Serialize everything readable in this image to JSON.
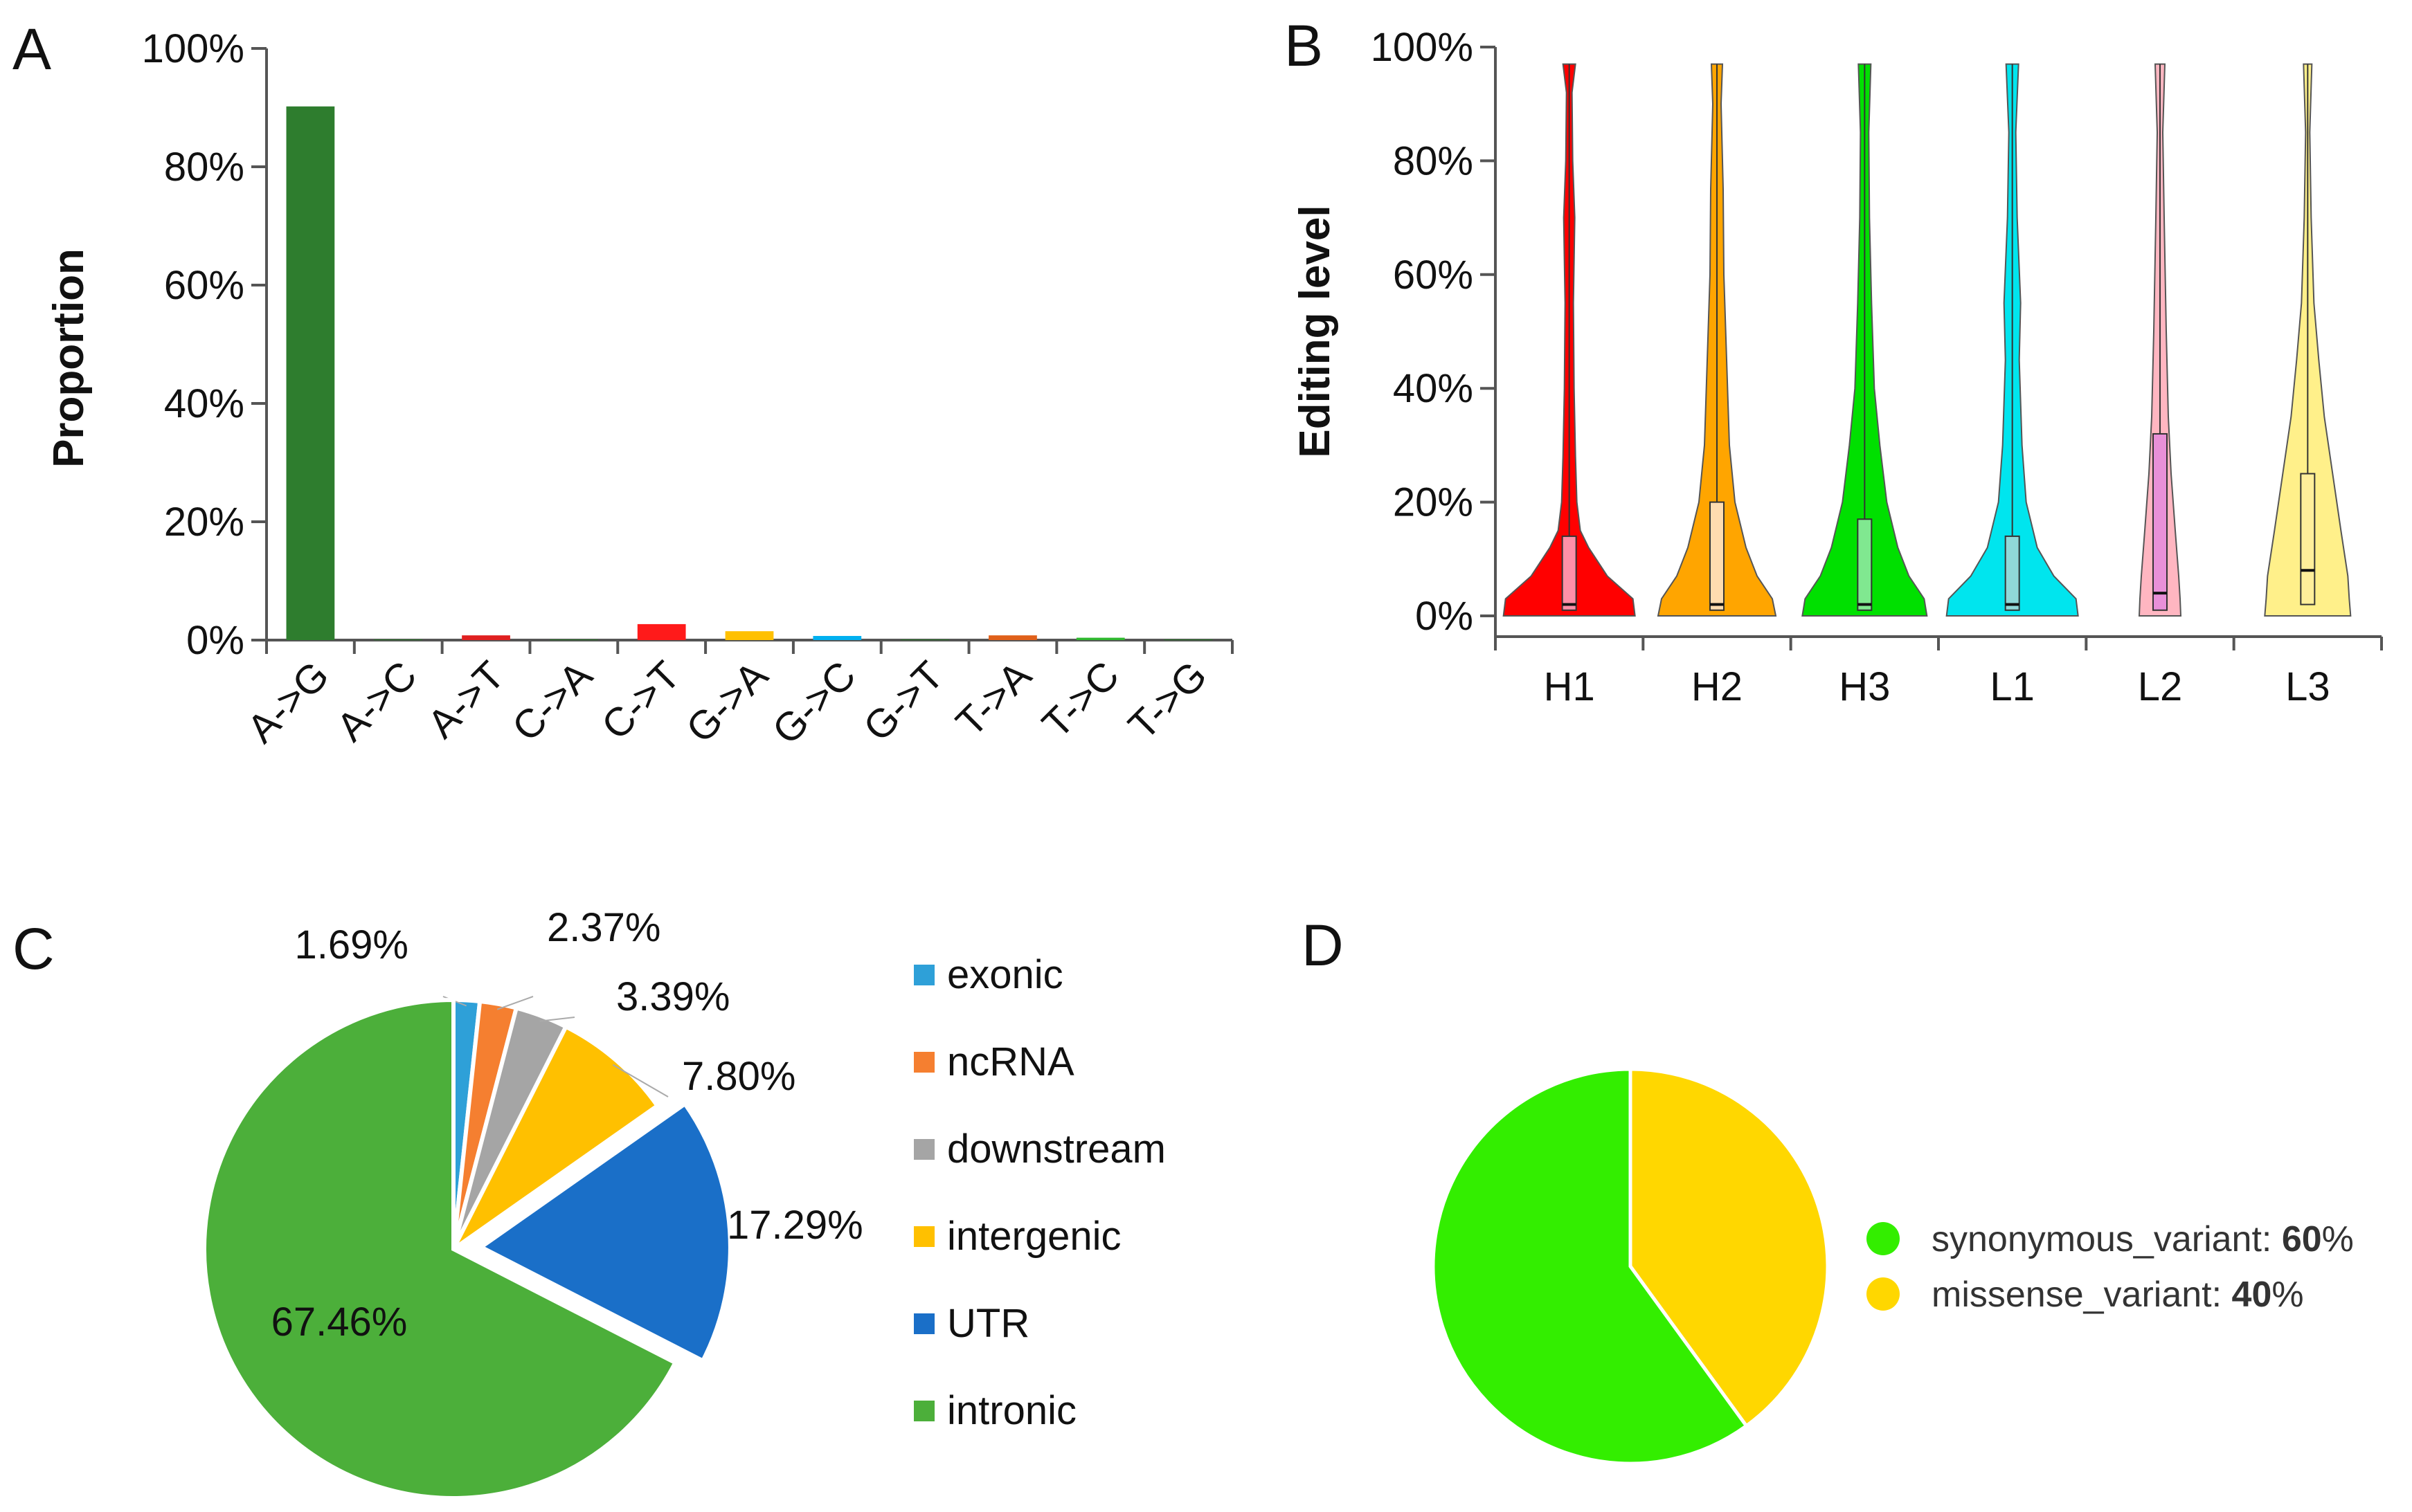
{
  "chart_data": [
    {
      "panel": "A",
      "type": "bar",
      "ylabel": "Proportion",
      "xlabel": "",
      "ylim": [
        0,
        100
      ],
      "y_ticks": [
        "0%",
        "20%",
        "40%",
        "60%",
        "80%",
        "100%"
      ],
      "categories": [
        "A->G",
        "A->C",
        "A->T",
        "C->A",
        "C->T",
        "G->A",
        "G->C",
        "G->T",
        "T->A",
        "T->C",
        "T->G"
      ],
      "values": [
        90.2,
        0.1,
        0.8,
        0.1,
        2.7,
        1.5,
        0.7,
        0.1,
        0.8,
        0.4,
        0.1
      ],
      "colors": [
        "#2e7d2e",
        "#2e7d2e",
        "#e02020",
        "#2e7d2e",
        "#ff1a1a",
        "#ffc000",
        "#00b0f0",
        "#2e7d2e",
        "#e0601a",
        "#2eb82e",
        "#2e7d2e"
      ]
    },
    {
      "panel": "B",
      "type": "violin",
      "ylabel": "Editing level",
      "xlabel": "",
      "ylim": [
        0,
        100
      ],
      "y_ticks": [
        "0%",
        "20%",
        "40%",
        "60%",
        "80%",
        "100%"
      ],
      "categories": [
        "H1",
        "H2",
        "H3",
        "L1",
        "L2",
        "L3"
      ],
      "violin_colors": [
        "#ff0000",
        "#ffa500",
        "#00e000",
        "#00e5ee",
        "#ffb6c1",
        "#fff08a"
      ],
      "box_colors": [
        "#ff8fa8",
        "#ffdcb0",
        "#80e890",
        "#8fd8d8",
        "#e890d8",
        "#ffef9a"
      ],
      "box_q1": [
        1,
        1,
        1,
        1,
        1,
        2
      ],
      "box_median": [
        2,
        2,
        2,
        2,
        4,
        8
      ],
      "box_q3": [
        14,
        20,
        17,
        14,
        32,
        25
      ],
      "whisker_max": [
        97,
        97,
        97,
        97,
        97,
        97
      ]
    },
    {
      "panel": "C",
      "type": "pie",
      "categories": [
        "exonic",
        "ncRNA",
        "downstream",
        "intergenic",
        "UTR",
        "intronic"
      ],
      "values": [
        1.69,
        2.37,
        3.39,
        7.8,
        17.29,
        67.46
      ],
      "labels": [
        "1.69%",
        "2.37%",
        "3.39%",
        "7.80%",
        "17.29%",
        "67.46%"
      ],
      "colors": [
        "#2ea0d8",
        "#f57f30",
        "#a5a5a5",
        "#ffc000",
        "#1a6fc8",
        "#4caf3a"
      ]
    },
    {
      "panel": "D",
      "type": "pie",
      "categories": [
        "synonymous_variant",
        "missense_variant"
      ],
      "values": [
        60,
        40
      ],
      "legend_entries": [
        {
          "name": "synonymous_variant: ",
          "value": "60",
          "unit": "%"
        },
        {
          "name": "missense_variant: ",
          "value": "40",
          "unit": "%"
        }
      ],
      "colors": [
        "#33ee00",
        "#ffd700"
      ]
    }
  ],
  "panel_letters": [
    "A",
    "B",
    "C",
    "D"
  ]
}
